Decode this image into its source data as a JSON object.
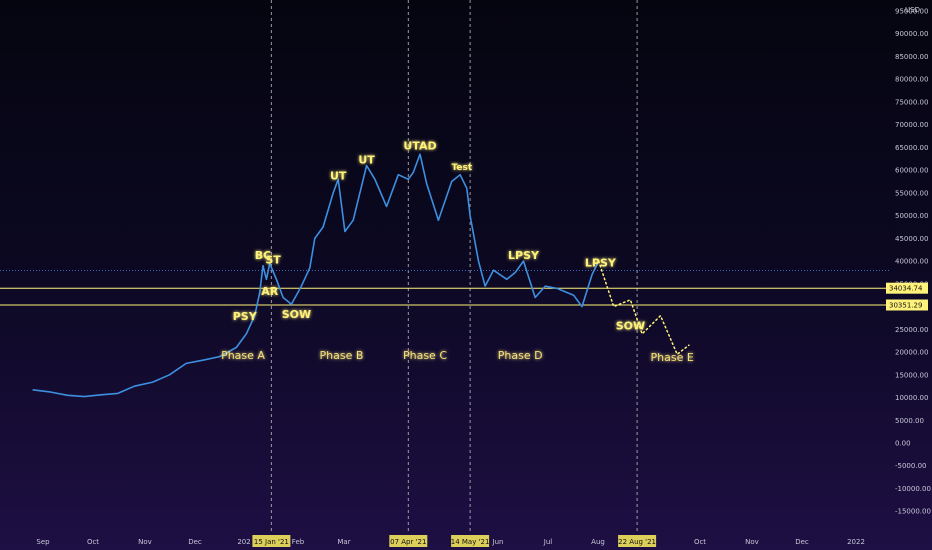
{
  "chart_data": {
    "type": "line",
    "currency": "USD",
    "ylim": [
      -18000,
      100000
    ],
    "y_ticks": [
      95000,
      90000,
      85000,
      80000,
      75000,
      70000,
      65000,
      60000,
      55000,
      50000,
      45000,
      40000,
      35000,
      30000,
      25000,
      20000,
      15000,
      10000,
      5000,
      0,
      -5000,
      -10000,
      -15000
    ],
    "y_tick_labels": [
      "95000.00",
      "90000.00",
      "85000.00",
      "80000.00",
      "75000.00",
      "70000.00",
      "65000.00",
      "60000.00",
      "55000.00",
      "50000.00",
      "45000.00",
      "40000.00",
      "35000.00",
      "30000.00",
      "25000.00",
      "20000.00",
      "15000.00",
      "10000.00",
      "5000.00",
      "0.00",
      "-5000.00",
      "-10000.00",
      "-15000.00"
    ],
    "x_tick_labels": [
      "Sep",
      "Oct",
      "Nov",
      "Dec",
      "202",
      "Feb",
      "Mar",
      "Jun",
      "Jul",
      "Aug",
      "Oct",
      "Nov",
      "Dec",
      "2022"
    ],
    "date_markers": [
      "15 Jan '21",
      "07 Apr '21",
      "14 May '21",
      "22 Aug '21"
    ],
    "price_levels": [
      {
        "value": 34034.74,
        "label": "34034.74"
      },
      {
        "value": 30351.29,
        "label": "30351.29"
      }
    ],
    "price_series": [
      {
        "date": "2020-08-25",
        "price": 11700
      },
      {
        "date": "2020-09-05",
        "price": 11200
      },
      {
        "date": "2020-09-15",
        "price": 10500
      },
      {
        "date": "2020-09-25",
        "price": 10200
      },
      {
        "date": "2020-10-05",
        "price": 10600
      },
      {
        "date": "2020-10-15",
        "price": 10900
      },
      {
        "date": "2020-10-25",
        "price": 12500
      },
      {
        "date": "2020-11-05",
        "price": 13400
      },
      {
        "date": "2020-11-15",
        "price": 15000
      },
      {
        "date": "2020-11-25",
        "price": 17500
      },
      {
        "date": "2020-12-05",
        "price": 18200
      },
      {
        "date": "2020-12-15",
        "price": 19000
      },
      {
        "date": "2020-12-25",
        "price": 21000
      },
      {
        "date": "2020-12-31",
        "price": 24000
      },
      {
        "date": "2021-01-05",
        "price": 28000
      },
      {
        "date": "2021-01-08",
        "price": 33000
      },
      {
        "date": "2021-01-10",
        "price": 39000
      },
      {
        "date": "2021-01-12",
        "price": 36000
      },
      {
        "date": "2021-01-14",
        "price": 39500
      },
      {
        "date": "2021-01-18",
        "price": 36000
      },
      {
        "date": "2021-01-22",
        "price": 32000
      },
      {
        "date": "2021-01-27",
        "price": 30500
      },
      {
        "date": "2021-02-02",
        "price": 34500
      },
      {
        "date": "2021-02-07",
        "price": 38500
      },
      {
        "date": "2021-02-10",
        "price": 45000
      },
      {
        "date": "2021-02-15",
        "price": 47500
      },
      {
        "date": "2021-02-21",
        "price": 55000
      },
      {
        "date": "2021-02-24",
        "price": 58000
      },
      {
        "date": "2021-02-28",
        "price": 46500
      },
      {
        "date": "2021-03-05",
        "price": 49000
      },
      {
        "date": "2021-03-13",
        "price": 61000
      },
      {
        "date": "2021-03-18",
        "price": 58000
      },
      {
        "date": "2021-03-25",
        "price": 52000
      },
      {
        "date": "2021-04-01",
        "price": 59000
      },
      {
        "date": "2021-04-07",
        "price": 58000
      },
      {
        "date": "2021-04-10",
        "price": 59500
      },
      {
        "date": "2021-04-14",
        "price": 63500
      },
      {
        "date": "2021-04-18",
        "price": 57000
      },
      {
        "date": "2021-04-25",
        "price": 49000
      },
      {
        "date": "2021-05-03",
        "price": 57500
      },
      {
        "date": "2021-05-08",
        "price": 59000
      },
      {
        "date": "2021-05-12",
        "price": 56000
      },
      {
        "date": "2021-05-14",
        "price": 50000
      },
      {
        "date": "2021-05-19",
        "price": 40000
      },
      {
        "date": "2021-05-23",
        "price": 34500
      },
      {
        "date": "2021-05-28",
        "price": 38000
      },
      {
        "date": "2021-06-05",
        "price": 36000
      },
      {
        "date": "2021-06-10",
        "price": 37500
      },
      {
        "date": "2021-06-15",
        "price": 40000
      },
      {
        "date": "2021-06-22",
        "price": 32000
      },
      {
        "date": "2021-06-28",
        "price": 34500
      },
      {
        "date": "2021-07-05",
        "price": 34000
      },
      {
        "date": "2021-07-15",
        "price": 32500
      },
      {
        "date": "2021-07-20",
        "price": 30000
      },
      {
        "date": "2021-07-26",
        "price": 37000
      },
      {
        "date": "2021-07-30",
        "price": 40000
      }
    ],
    "projection": [
      {
        "date": "2021-07-30",
        "price": 40000
      },
      {
        "date": "2021-08-08",
        "price": 30000
      },
      {
        "date": "2021-08-18",
        "price": 31500
      },
      {
        "date": "2021-08-25",
        "price": 24000
      },
      {
        "date": "2021-09-05",
        "price": 28000
      },
      {
        "date": "2021-09-15",
        "price": 19500
      },
      {
        "date": "2021-09-22",
        "price": 21500
      }
    ],
    "volume_series": [],
    "wyckoff_labels": [
      {
        "text": "PSY",
        "date": "2020-12-30",
        "price": 27000
      },
      {
        "text": "BC",
        "date": "2021-01-10",
        "price": 40500
      },
      {
        "text": "ST",
        "date": "2021-01-16",
        "price": 39500
      },
      {
        "text": "AR",
        "date": "2021-01-14",
        "price": 32500
      },
      {
        "text": "SOW",
        "date": "2021-01-30",
        "price": 27500
      },
      {
        "text": "UT",
        "date": "2021-02-24",
        "price": 58000
      },
      {
        "text": "UT",
        "date": "2021-03-13",
        "price": 61500
      },
      {
        "text": "UTAD",
        "date": "2021-04-14",
        "price": 64500
      },
      {
        "text": "Test",
        "date": "2021-05-09",
        "price": 60000
      },
      {
        "text": "LPSY",
        "date": "2021-06-15",
        "price": 40500
      },
      {
        "text": "LPSY",
        "date": "2021-07-31",
        "price": 38800
      },
      {
        "text": "SOW",
        "date": "2021-08-18",
        "price": 25000
      }
    ],
    "phase_labels": [
      {
        "text": "Phase A",
        "date": "2020-12-29",
        "price": 18500
      },
      {
        "text": "Phase B",
        "date": "2021-02-26",
        "price": 18500
      },
      {
        "text": "Phase C",
        "date": "2021-04-17",
        "price": 18500
      },
      {
        "text": "Phase D",
        "date": "2021-06-13",
        "price": 18500
      },
      {
        "text": "Phase E",
        "date": "2021-09-12",
        "price": 18000
      }
    ]
  }
}
